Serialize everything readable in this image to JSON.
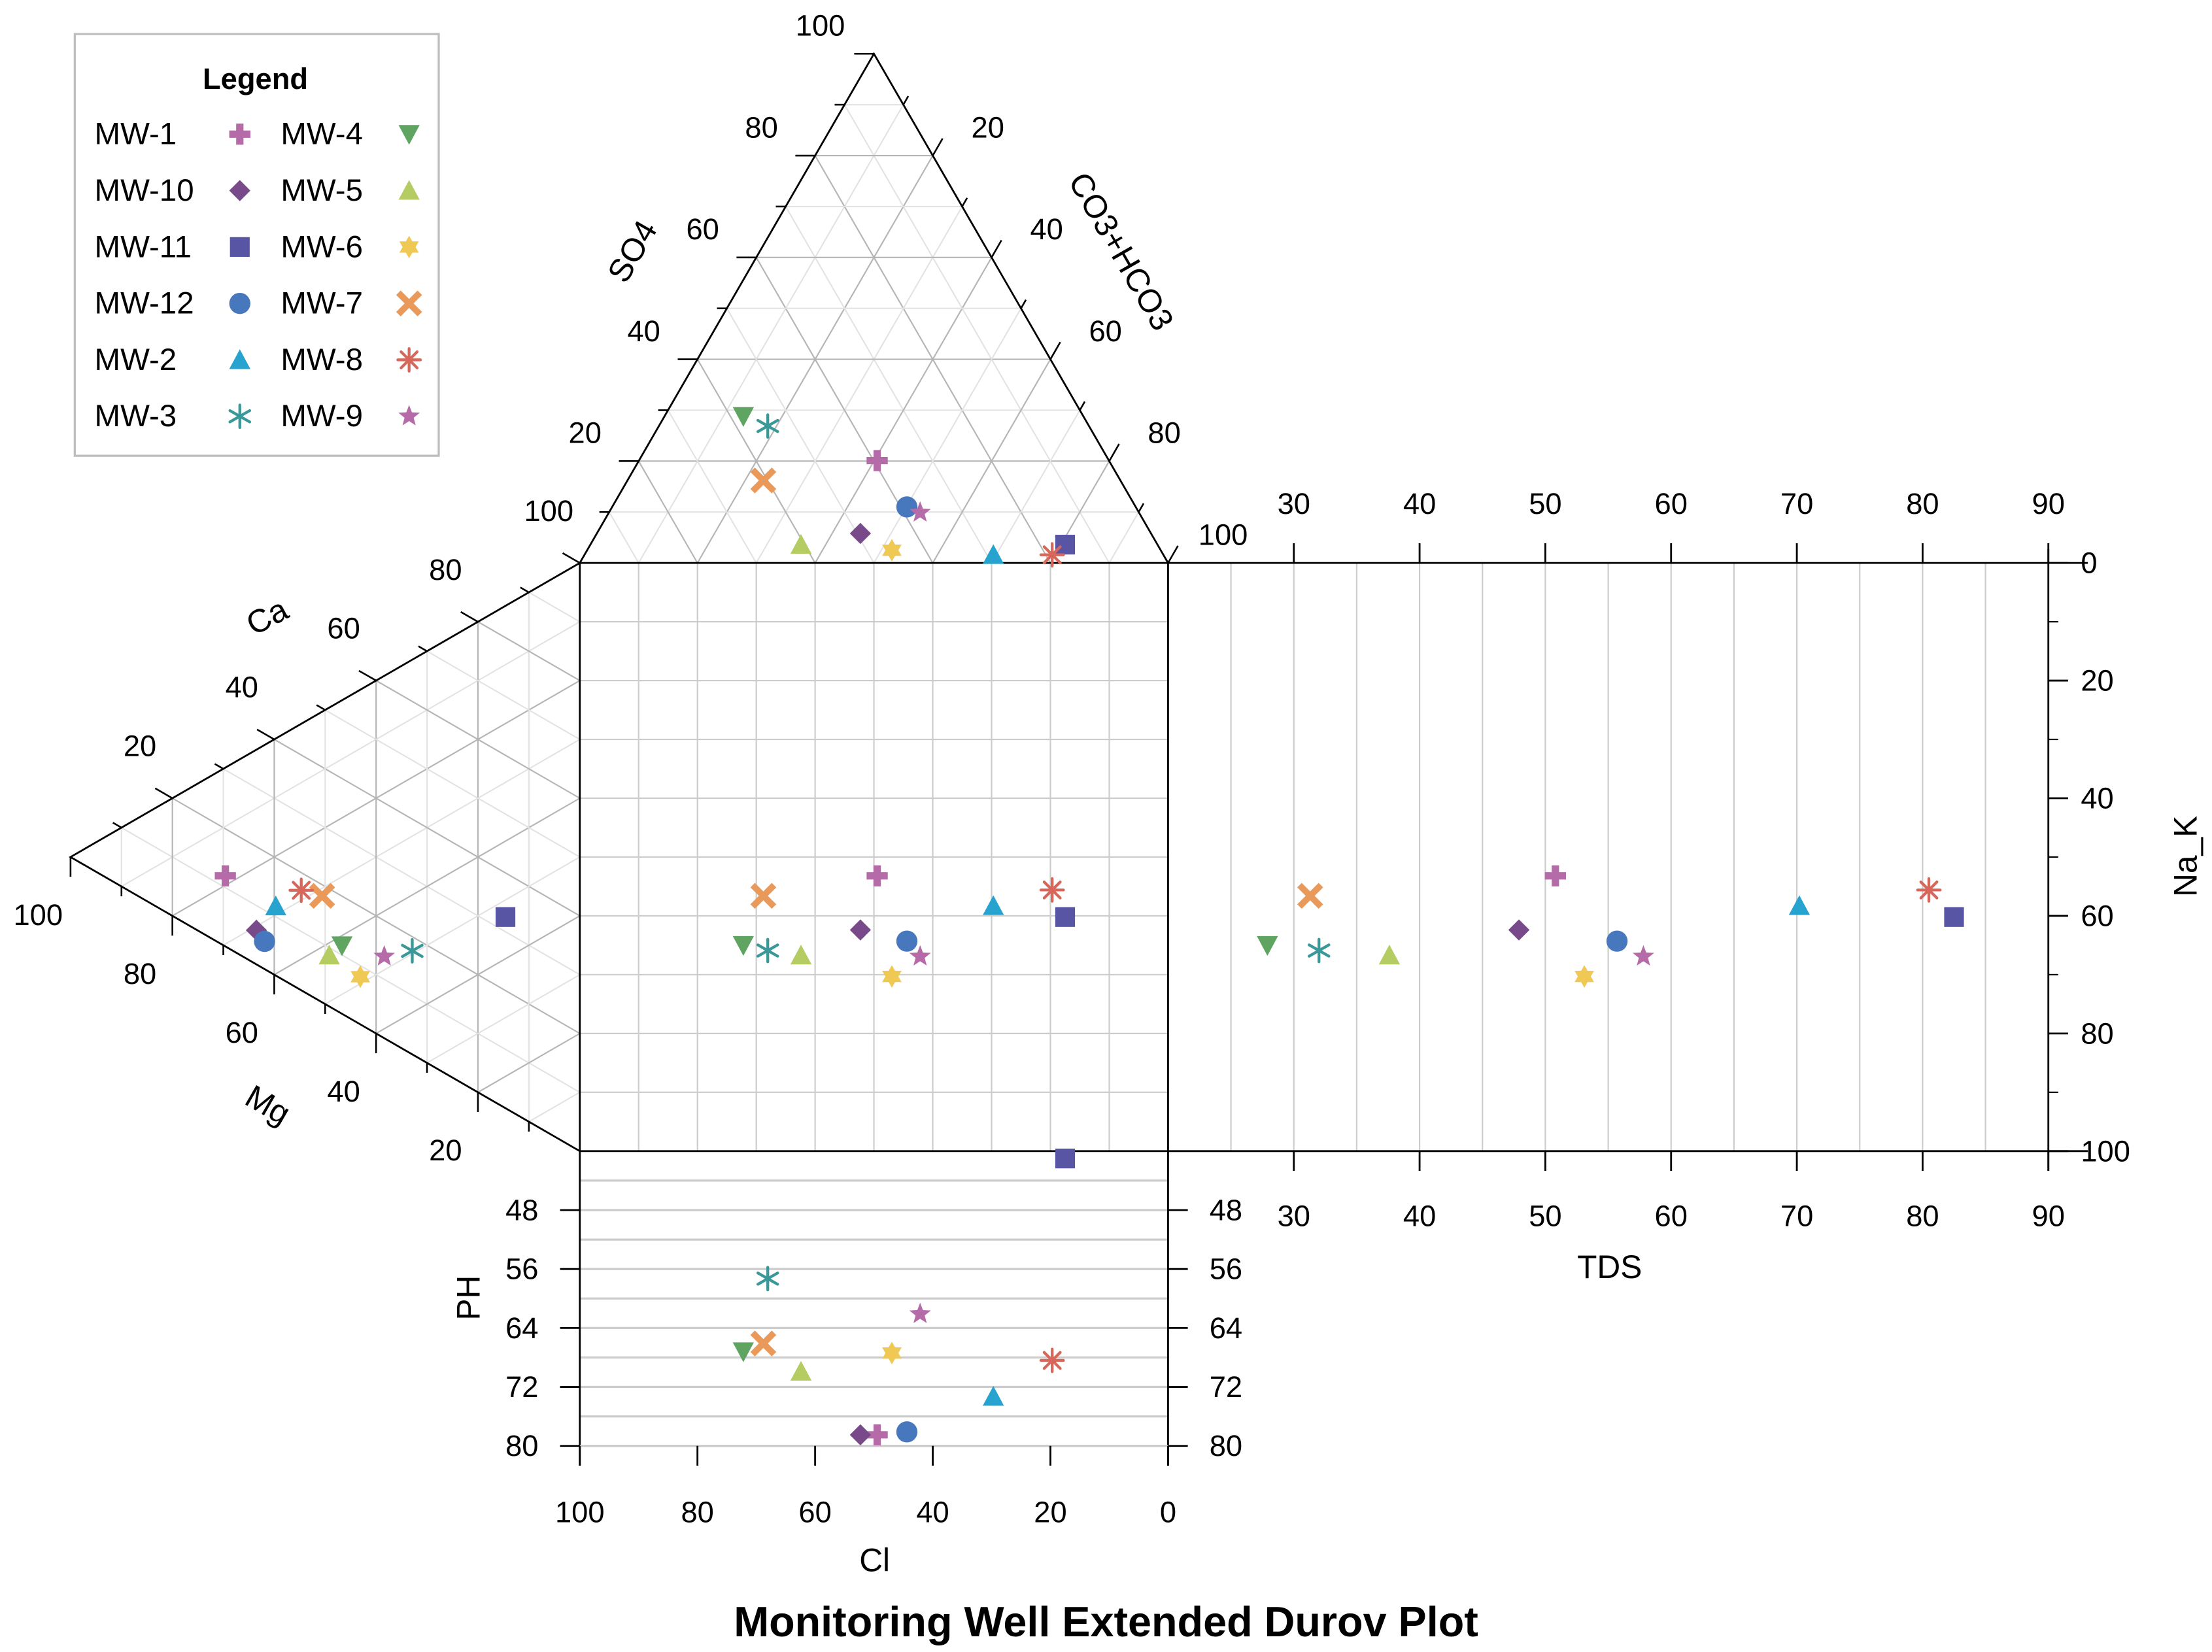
{
  "chart_data": {
    "type": "scatter",
    "title": "Monitoring Well Extended Durov Plot",
    "legend": {
      "title": "Legend",
      "placement": "top-left"
    },
    "axes": {
      "so4": {
        "label": "SO4",
        "ticks": [
          20,
          40,
          60,
          80,
          100
        ],
        "extra_tick": 100
      },
      "hco3": {
        "label": "CO3+HCO3",
        "ticks": [
          20,
          40,
          60,
          80,
          100
        ]
      },
      "ca": {
        "label": "Ca",
        "ticks": [
          20,
          40,
          60,
          80
        ]
      },
      "mg": {
        "label": "Mg",
        "ticks": [
          20,
          40,
          60,
          80,
          100
        ]
      },
      "na_k": {
        "label": "Na_K",
        "ticks": [
          0,
          20,
          40,
          60,
          80,
          100
        ],
        "range": [
          0,
          100
        ]
      },
      "tds": {
        "label": "TDS",
        "ticks": [
          30,
          40,
          50,
          60,
          70,
          80,
          90
        ],
        "range": [
          20,
          90
        ],
        "grid_step": 5
      },
      "ph": {
        "label": "PH",
        "ticks": [
          48,
          56,
          64,
          72,
          80
        ],
        "range": [
          40,
          80
        ],
        "grid_step": 4
      },
      "cl": {
        "label": "Cl",
        "ticks": [
          100,
          80,
          60,
          40,
          20,
          0
        ],
        "range": [
          100,
          0
        ]
      }
    },
    "series": [
      {
        "name": "MW-1",
        "marker": "plus",
        "color": "#b56ba8",
        "so4": 20.1,
        "hco3": 40.5,
        "cl": 39.4,
        "ca": 12.0,
        "mg": 69.6,
        "na_k": 53.2,
        "tds": 50.8,
        "ph": 78.5
      },
      {
        "name": "MW-10",
        "marker": "diamond",
        "color": "#784a8a",
        "so4": 5.8,
        "hco3": 44.8,
        "cl": 49.4,
        "ca": 5.8,
        "mg": 63.5,
        "na_k": 62.4,
        "tds": 47.9,
        "ph": 78.5
      },
      {
        "name": "MW-11",
        "marker": "square",
        "color": "#5855a4",
        "so4": 3.6,
        "hco3": 80.7,
        "cl": 15.7,
        "ca": 32.5,
        "mg": 14.6,
        "na_k": 60.2,
        "tds": 82.5,
        "ph": 41.0
      },
      {
        "name": "MW-12",
        "marker": "circle",
        "color": "#4778bd",
        "so4": 11.0,
        "hco3": 50.1,
        "cl": 38.9,
        "ca": 4.7,
        "mg": 61.9,
        "na_k": 64.3,
        "tds": 55.7,
        "ph": 78.1
      },
      {
        "name": "MW-2",
        "marker": "triangle",
        "color": "#27a3d0",
        "so4": 1.6,
        "hco3": 69.5,
        "cl": 28.9,
        "ca": 11.8,
        "mg": 59.7,
        "na_k": 58.3,
        "tds": 70.2,
        "ph": 73.3
      },
      {
        "name": "MW-3",
        "marker": "asterisk6",
        "color": "#3a9898",
        "so4": 26.9,
        "hco3": 18.5,
        "cl": 54.6,
        "ca": 17.6,
        "mg": 32.9,
        "na_k": 65.9,
        "tds": 32.0,
        "ph": 57.3
      },
      {
        "name": "MW-4",
        "marker": "triangle-down",
        "color": "#60a462",
        "so4": 28.8,
        "hco3": 13.4,
        "cl": 57.8,
        "ca": 11.6,
        "mg": 46.7,
        "na_k": 65.0,
        "tds": 27.9,
        "ph": 67.2
      },
      {
        "name": "MW-5",
        "marker": "triangle",
        "color": "#b5cc62",
        "so4": 3.6,
        "hco3": 35.8,
        "cl": 60.6,
        "ca": 8.7,
        "mg": 49.2,
        "na_k": 66.7,
        "tds": 37.6,
        "ph": 69.9
      },
      {
        "name": "MW-6",
        "marker": "star6",
        "color": "#f0c854",
        "so4": 2.5,
        "hco3": 51.8,
        "cl": 45.7,
        "ca": 8.1,
        "mg": 43.1,
        "na_k": 70.3,
        "tds": 53.1,
        "ph": 67.4
      },
      {
        "name": "MW-7",
        "marker": "x",
        "color": "#e99a5b",
        "so4": 16.2,
        "hco3": 23.1,
        "cl": 60.7,
        "ca": 18.1,
        "mg": 50.6,
        "na_k": 56.6,
        "tds": 31.3,
        "ph": 66.1
      },
      {
        "name": "MW-8",
        "marker": "asterisk8",
        "color": "#d6675a",
        "so4": 1.6,
        "hco3": 79.5,
        "cl": 18.9,
        "ca": 17.0,
        "mg": 54.7,
        "na_k": 55.6,
        "tds": 80.5,
        "ph": 68.4
      },
      {
        "name": "MW-9",
        "marker": "star5",
        "color": "#b56ba8",
        "so4": 9.9,
        "hco3": 52.9,
        "cl": 37.2,
        "ca": 13.9,
        "mg": 38.4,
        "na_k": 66.9,
        "tds": 57.8,
        "ph": 62.1
      }
    ]
  }
}
